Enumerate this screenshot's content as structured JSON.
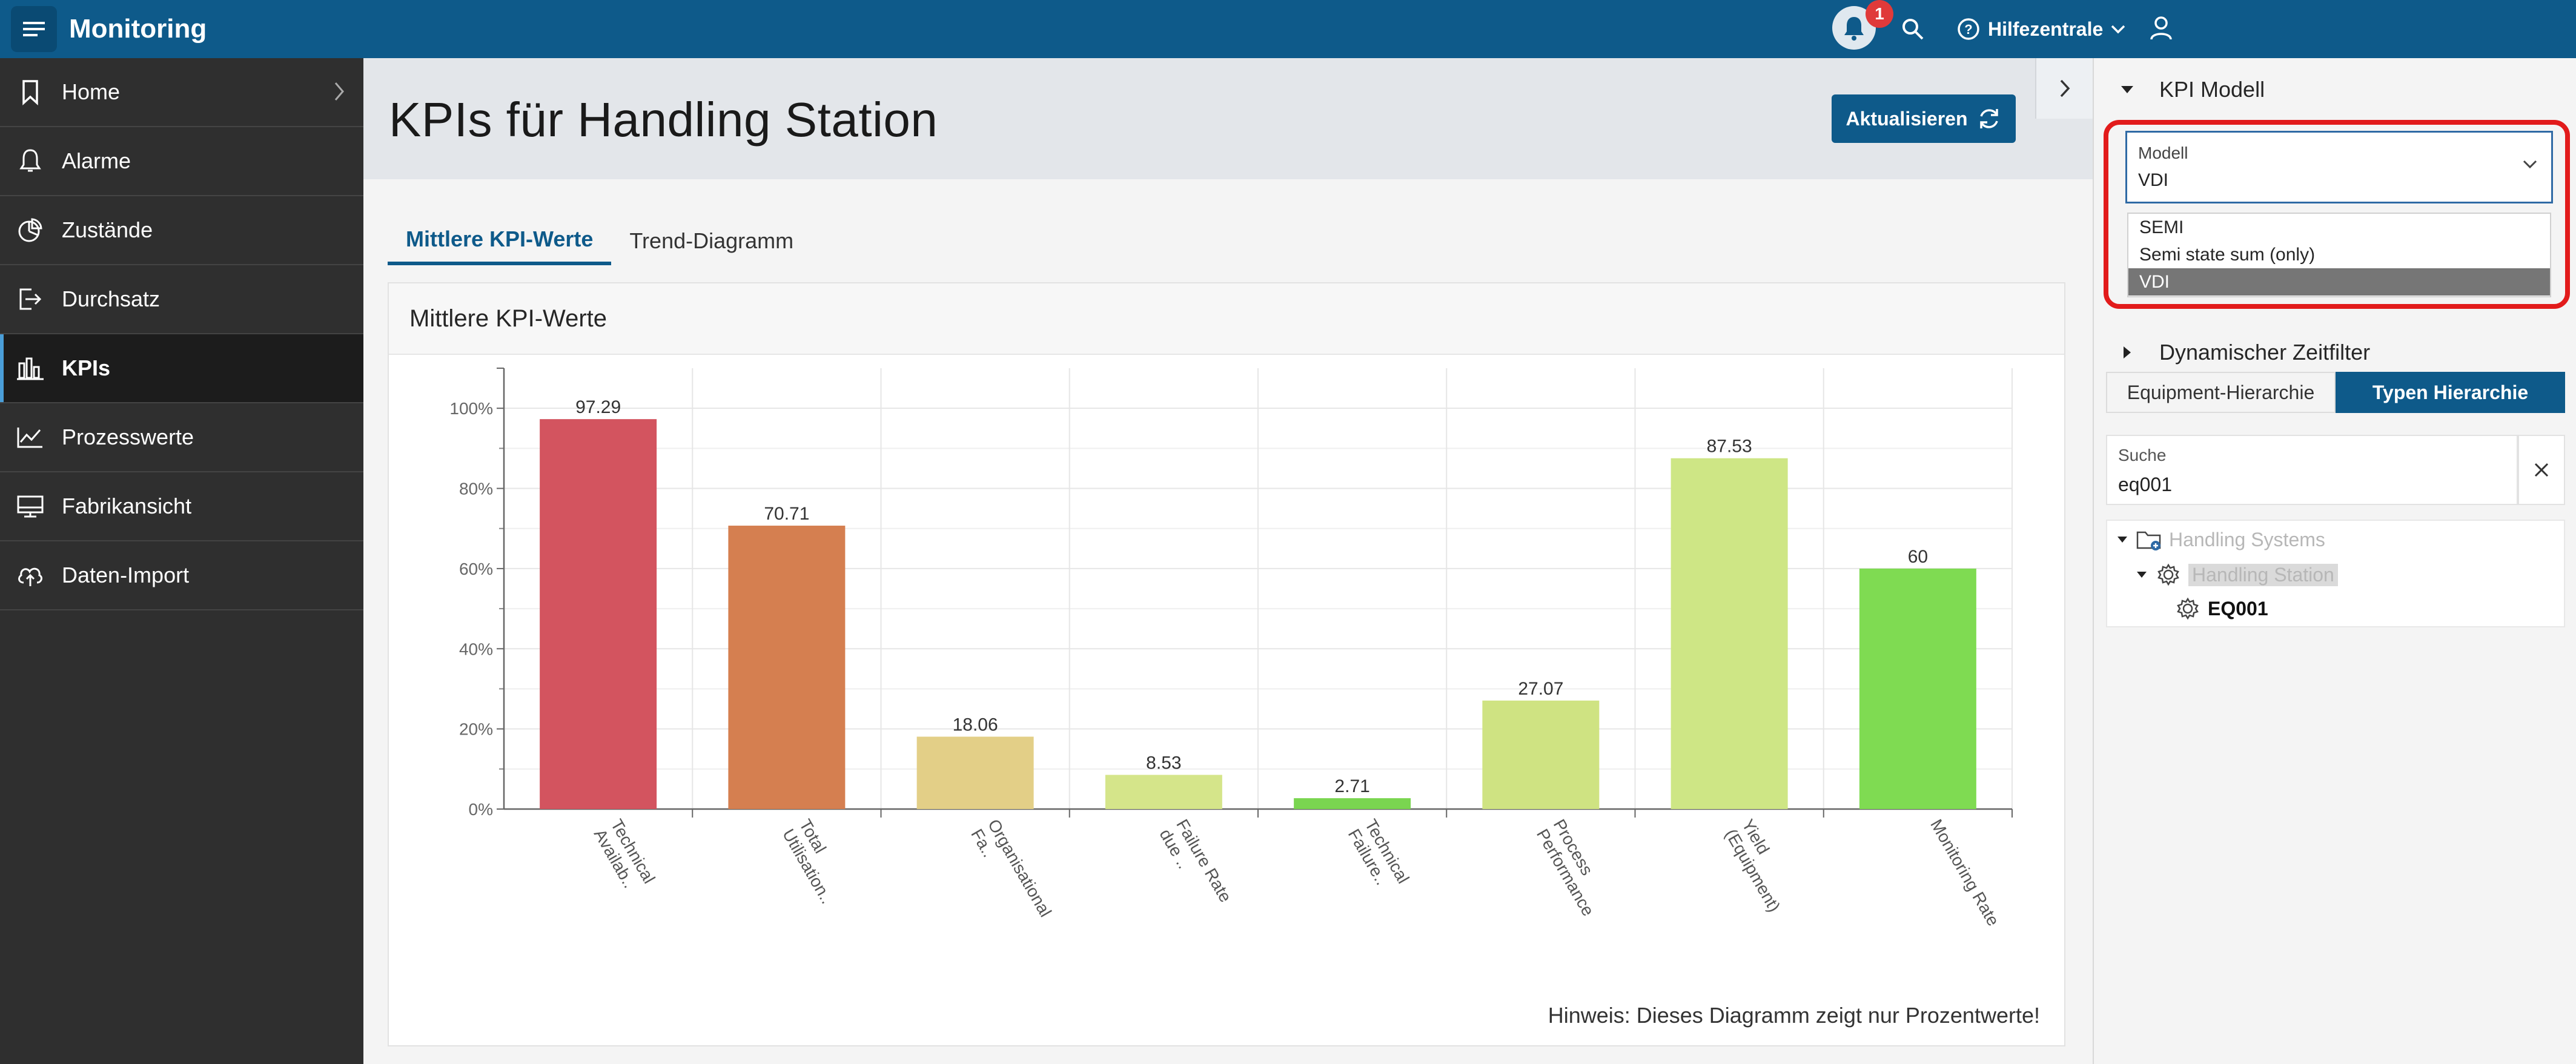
{
  "app": {
    "title": "Monitoring",
    "notifications_count": "1",
    "help_label": "Hilfezentrale"
  },
  "sidebar": {
    "items": [
      {
        "label": "Home",
        "icon": "bookmark-icon"
      },
      {
        "label": "Alarme",
        "icon": "bell-icon"
      },
      {
        "label": "Zustände",
        "icon": "pie-chart-icon"
      },
      {
        "label": "Durchsatz",
        "icon": "sign-out-icon"
      },
      {
        "label": "KPIs",
        "icon": "bar-chart-icon",
        "active": true
      },
      {
        "label": "Prozesswerte",
        "icon": "line-chart-icon"
      },
      {
        "label": "Fabrikansicht",
        "icon": "monitor-icon"
      },
      {
        "label": "Daten-Import",
        "icon": "cloud-upload-icon"
      }
    ]
  },
  "main": {
    "title": "KPIs für Handling Station",
    "refresh_label": "Aktualisieren",
    "tabs": [
      {
        "label": "Mittlere KPI-Werte",
        "active": true
      },
      {
        "label": "Trend-Diagramm",
        "active": false
      }
    ],
    "card_title": "Mittlere KPI-Werte",
    "hint": "Hinweis: Dieses Diagramm zeigt nur Prozentwerte!"
  },
  "chart_data": {
    "type": "bar",
    "categories": [
      [
        "Technical",
        "Availab.."
      ],
      [
        "Total",
        "Utilisation.."
      ],
      [
        "Organisational",
        "Fa.."
      ],
      [
        "Failure Rate",
        "due .."
      ],
      [
        "Technical",
        "Failure.."
      ],
      [
        "Process",
        "Performance"
      ],
      [
        "Yield",
        "(Equipment)"
      ],
      [
        "Monitoring Rate"
      ]
    ],
    "values": [
      97.29,
      70.71,
      18.06,
      8.53,
      2.71,
      27.07,
      87.53,
      60
    ],
    "value_labels": [
      "97.29",
      "70.71",
      "18.06",
      "8.53",
      "2.71",
      "27.07",
      "87.53",
      "60"
    ],
    "colors": [
      "#d3545f",
      "#d57f50",
      "#e3cf87",
      "#d5e58a",
      "#7ad550",
      "#cfe382",
      "#cee685",
      "#7fdb52"
    ],
    "ylim": [
      0,
      110
    ],
    "yticks": [
      0,
      20,
      40,
      60,
      80,
      100
    ],
    "ytick_labels": [
      "0%",
      "20%",
      "40%",
      "60%",
      "80%",
      "100%"
    ],
    "grid": true,
    "legend": "none"
  },
  "rpanel": {
    "kpi_model_title": "KPI Modell",
    "select_label": "Modell",
    "select_value": "VDI",
    "options": [
      "SEMI",
      "Semi state sum (only)",
      "VDI"
    ],
    "selected_option": "VDI",
    "dynamic_filter_title": "Dynamischer Zeitfilter",
    "hierarchy_tabs": [
      {
        "label": "Equipment-Hierarchie",
        "active": false
      },
      {
        "label": "Typen Hierarchie",
        "active": true
      }
    ],
    "search_label": "Suche",
    "search_value": "eq001",
    "tree": [
      {
        "label": "Handling Systems",
        "icon": "folder-icon"
      },
      {
        "label": "Handling Station",
        "icon": "gear-icon"
      },
      {
        "label": "EQ001",
        "icon": "gear-icon"
      }
    ]
  }
}
